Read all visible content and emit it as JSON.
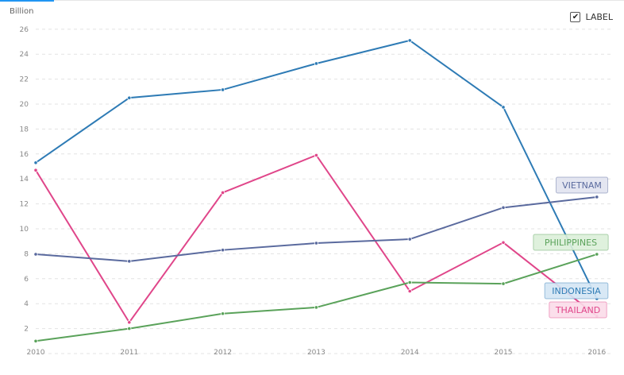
{
  "chart_data": {
    "type": "line",
    "ylabel": "Billion",
    "x": [
      "2010",
      "2011",
      "2012",
      "2013",
      "2014",
      "2015",
      "2016"
    ],
    "ylim": [
      0,
      26
    ],
    "yticks": [
      2,
      4,
      6,
      8,
      10,
      12,
      14,
      16,
      18,
      20,
      22,
      24,
      26
    ],
    "grid": true,
    "legend": {
      "checkbox_label": "LABEL",
      "checked": true
    },
    "series": [
      {
        "name": "INDONESIA",
        "color": "#2e7bb5",
        "bg": "#d4e6f4",
        "values": [
          15.3,
          20.5,
          21.15,
          23.25,
          25.1,
          19.75,
          4.4
        ]
      },
      {
        "name": "THAILAND",
        "color": "#e0468a",
        "bg": "#fbdbe9",
        "values": [
          14.7,
          2.5,
          12.9,
          15.9,
          5.0,
          8.9,
          3.0
        ]
      },
      {
        "name": "VIETNAM",
        "color": "#5a6a9e",
        "bg": "#e1e3ef",
        "values": [
          7.96,
          7.4,
          8.3,
          8.85,
          9.17,
          11.7,
          12.55
        ]
      },
      {
        "name": "PHILIPPINES",
        "color": "#5aa25a",
        "bg": "#dcefd9",
        "values": [
          1.0,
          2.0,
          3.2,
          3.7,
          5.7,
          5.6,
          7.96
        ]
      }
    ]
  }
}
